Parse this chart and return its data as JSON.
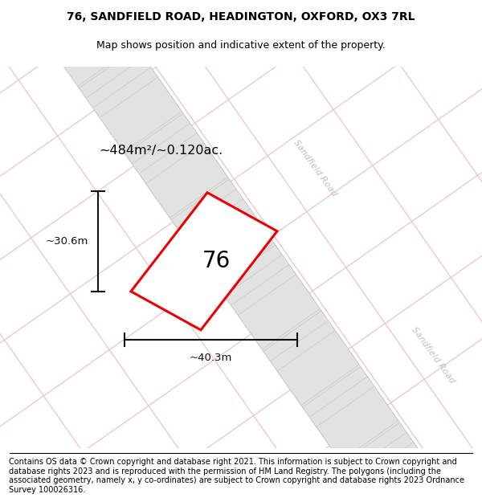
{
  "title_line1": "76, SANDFIELD ROAD, HEADINGTON, OXFORD, OX3 7RL",
  "title_line2": "Map shows position and indicative extent of the property.",
  "footer_text": "Contains OS data © Crown copyright and database right 2021. This information is subject to Crown copyright and database rights 2023 and is reproduced with the permission of HM Land Registry. The polygons (including the associated geometry, namely x, y co-ordinates) are subject to Crown copyright and database rights 2023 Ordnance Survey 100026316.",
  "map_bg": "#f8f8f8",
  "road_line_color": "#f0c8c8",
  "block_fill": "#e2e2e2",
  "block_edge": "#c8c8c8",
  "road_label_color": "#c0c0c0",
  "property_label": "76",
  "area_label": "~484m²/~0.120ac.",
  "width_label": "~40.3m",
  "height_label": "~30.6m",
  "property_edge_color": "#ee0000",
  "property_fill": "#ffffff",
  "dim_color": "#111111",
  "title_fontsize": 10,
  "subtitle_fontsize": 9,
  "footer_fontsize": 7
}
